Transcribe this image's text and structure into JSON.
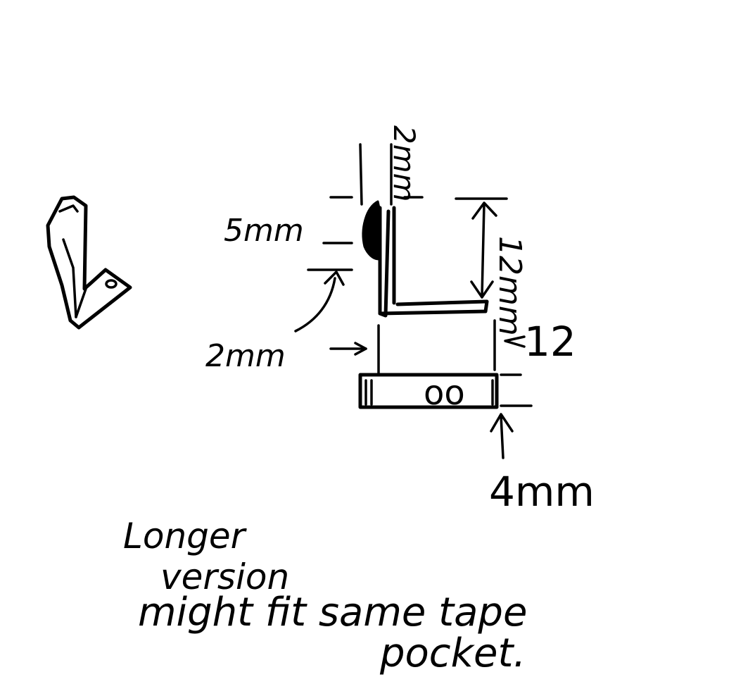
{
  "annotations": {
    "dim_top": "2mm",
    "dim_5mm": "5mm",
    "dim_12mm": "12mm",
    "dim_2mm": "2mm",
    "dim_12": "12",
    "dim_4mm": "4mm",
    "note_line1": "Longer",
    "note_line2": "version",
    "note_line3": "might fit same tape",
    "note_line4": "pocket.",
    "hole_label": "oo"
  }
}
